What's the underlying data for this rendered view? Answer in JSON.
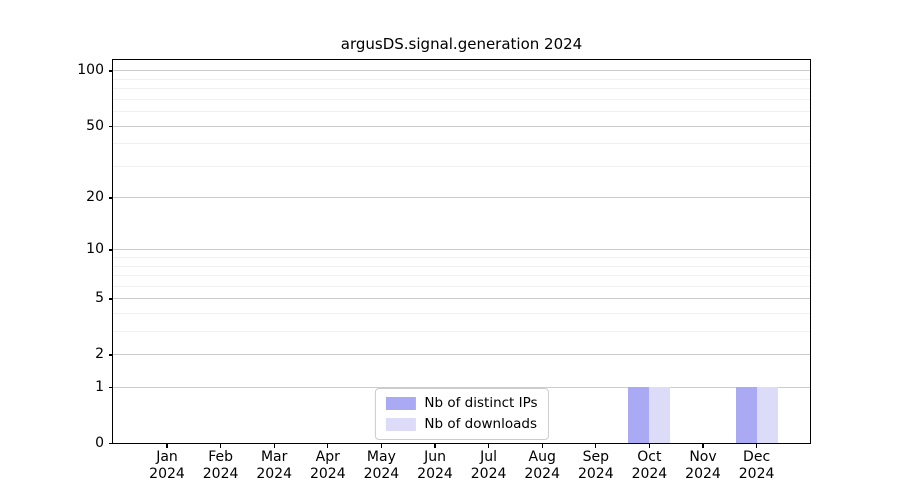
{
  "chart_data": {
    "type": "bar",
    "title": "argusDS.signal.generation 2024",
    "categories": [
      "Jan",
      "Feb",
      "Mar",
      "Apr",
      "May",
      "Jun",
      "Jul",
      "Aug",
      "Sep",
      "Oct",
      "Nov",
      "Dec"
    ],
    "x_tick_year": "2024",
    "series": [
      {
        "name": "Nb of distinct IPs",
        "color": "#aaaaf4",
        "values": [
          0,
          0,
          0,
          0,
          0,
          0,
          0,
          0,
          0,
          1,
          0,
          1
        ]
      },
      {
        "name": "Nb of downloads",
        "color": "#dcdcf8",
        "values": [
          0,
          0,
          0,
          0,
          0,
          0,
          0,
          0,
          0,
          1,
          0,
          1
        ]
      }
    ],
    "y_scale": "log1p",
    "ylim": [
      0,
      114
    ],
    "y_ticks": [
      100,
      50,
      20,
      10,
      5,
      2,
      1,
      0
    ],
    "y_minor_ticks": [
      3,
      4,
      6,
      7,
      8,
      9,
      30,
      40,
      60,
      70,
      80,
      90
    ],
    "grid": true,
    "legend_position": "lower center",
    "colors": {
      "axis": "#000000",
      "major_grid": "#cccccc",
      "minor_grid": "#f0f0f0",
      "background": "#ffffff"
    }
  }
}
